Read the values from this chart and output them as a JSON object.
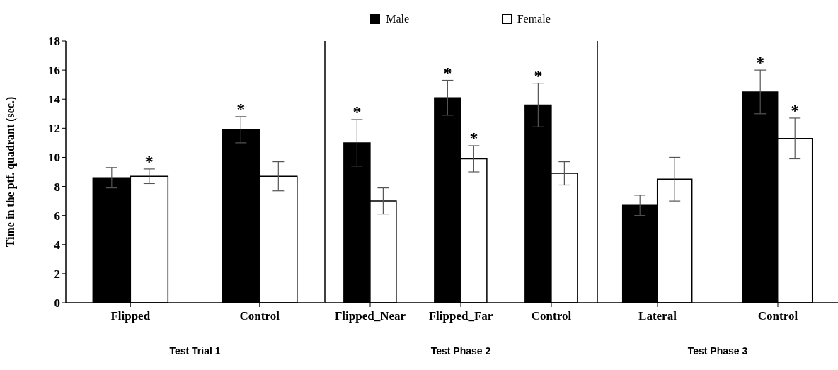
{
  "chart_data": [
    {
      "type": "bar",
      "categories": [
        "Flipped",
        "Control"
      ],
      "xlabel": "Test Trial 1",
      "ylabel": "Time in the ptf. quadrant (sec.)",
      "ylim": [
        0,
        18
      ],
      "yticks": [
        0,
        2,
        4,
        6,
        8,
        10,
        12,
        14,
        16,
        18
      ],
      "grid": false,
      "legend": false,
      "series": [
        {
          "color": "#000000",
          "values": [
            8.6,
            11.9
          ],
          "errors": [
            0.7,
            0.9
          ]
        },
        {
          "color": "#ffffff",
          "values": [
            8.7,
            8.7
          ],
          "errors": [
            0.5,
            1.0
          ]
        }
      ],
      "annotations": [
        {
          "text": "*",
          "x": "Flipped",
          "y": 8.7
        },
        {
          "text": "*",
          "x": "Control",
          "y": 11.9
        }
      ]
    },
    {
      "type": "bar",
      "categories": [
        "Flipped_Near",
        "Flipped_Far",
        "Control"
      ],
      "xlabel": "Test Phase 2",
      "ylim": [
        0,
        18
      ],
      "yticks": [
        0,
        2,
        4,
        6,
        8,
        10,
        12,
        14,
        16,
        18
      ],
      "tick_labels": "x",
      "grid": false,
      "legend": "top",
      "series": [
        {
          "name": "Male",
          "color": "#000000",
          "values": [
            11.0,
            14.1,
            13.6
          ],
          "errors": [
            1.6,
            1.2,
            1.5
          ]
        },
        {
          "name": "Female",
          "color": "#ffffff",
          "values": [
            7.0,
            9.9,
            8.9
          ],
          "errors": [
            0.9,
            0.9,
            0.8
          ]
        }
      ],
      "annotations": [
        {
          "text": "*",
          "x": "Flipped_Near",
          "y": 11.0
        },
        {
          "text": "*",
          "x": "Flipped_Far",
          "y": 14.1
        },
        {
          "text": "*",
          "x": "Flipped_Far",
          "y": 9.9
        },
        {
          "text": "*",
          "x": "Control",
          "y": 13.6
        }
      ]
    },
    {
      "type": "bar",
      "categories": [
        "Lateral",
        "Control"
      ],
      "xlabel": "Test Phase 3",
      "ylim": [
        0,
        18
      ],
      "yticks": [
        0,
        2,
        4,
        6,
        8,
        10,
        12,
        14,
        16,
        18
      ],
      "tick_labels": "x",
      "grid": false,
      "legend": false,
      "series": [
        {
          "color": "#000000",
          "values": [
            6.7,
            14.5
          ],
          "errors": [
            0.7,
            1.5
          ]
        },
        {
          "color": "#ffffff",
          "values": [
            8.5,
            11.3
          ],
          "errors": [
            1.5,
            1.4
          ]
        }
      ],
      "annotations": [
        {
          "text": "*",
          "x": "Control",
          "y": 11.3
        },
        {
          "text": "*",
          "x": "Control",
          "y": 14.5
        }
      ]
    }
  ]
}
